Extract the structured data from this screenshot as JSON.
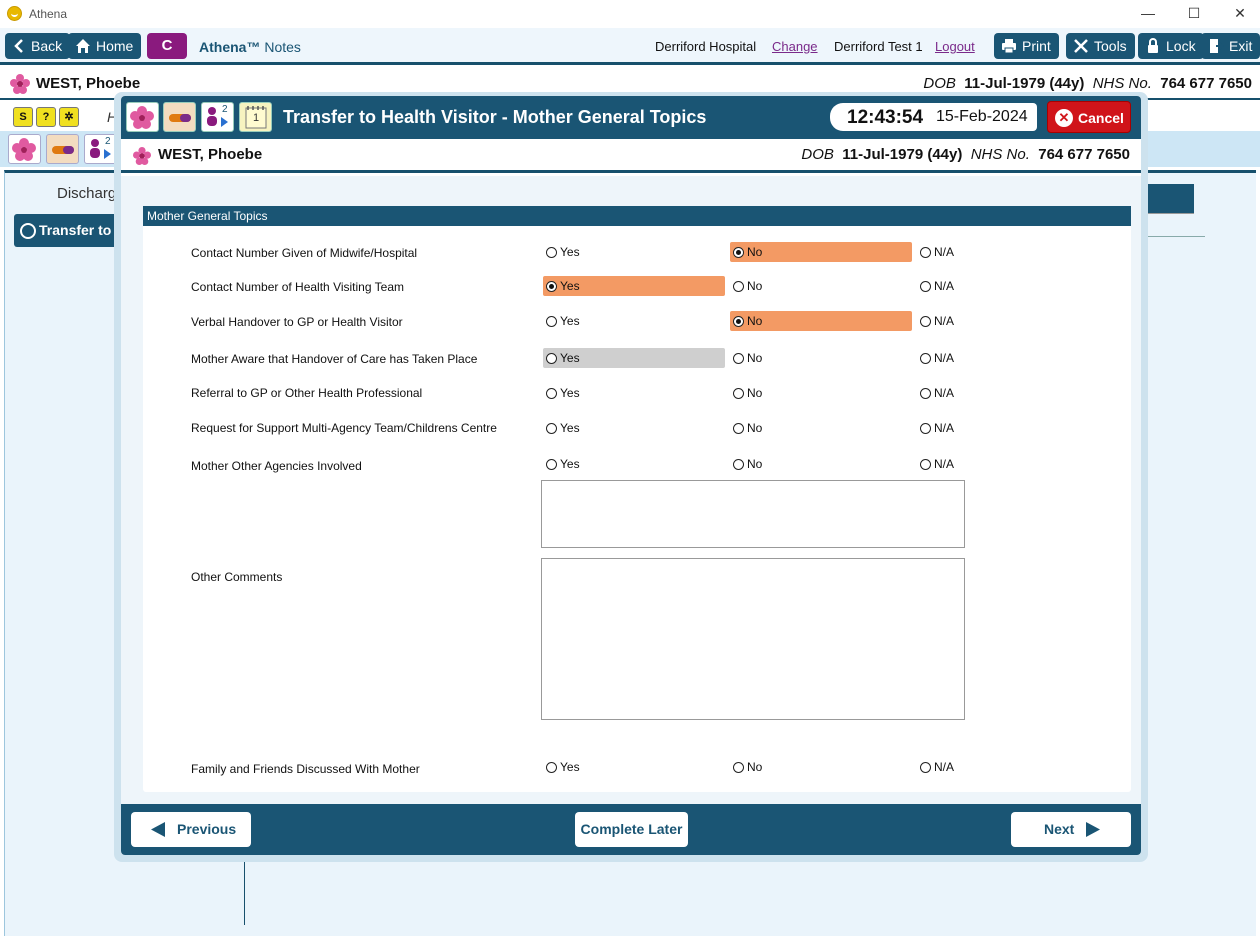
{
  "window": {
    "title": "Athena",
    "minimize": "—",
    "maximize": "☐",
    "close": "✕"
  },
  "toolbar": {
    "back": "Back",
    "home": "Home",
    "c_button": "C",
    "brand_bold": "Athena™",
    "brand_rest": " Notes",
    "hospital": "Derriford Hospital",
    "change": "Change",
    "user": "Derriford Test 1",
    "logout": "Logout",
    "print": "Print",
    "tools": "Tools",
    "lock": "Lock",
    "exit": "Exit"
  },
  "patient": {
    "name": "WEST, Phoebe",
    "dob_label": "DOB",
    "dob": "11-Jul-1979 (44y)",
    "nhs_label": "NHS No.",
    "nhs": "764 677 7650"
  },
  "background": {
    "row2_letter": "H",
    "discharge": "Discharg",
    "transfer": "Transfer to",
    "badge_count": "2"
  },
  "modal": {
    "title": "Transfer to Health Visitor - Mother General Topics",
    "time": "12:43:54",
    "date": "15-Feb-2024",
    "cancel": "Cancel",
    "icon_badge": "2",
    "note_number": "1",
    "section_title": "Mother General Topics",
    "option_labels": {
      "yes": "Yes",
      "no": "No",
      "na": "N/A"
    },
    "questions": [
      {
        "label": "Contact Number Given of Midwife/Hospital",
        "selected": "no"
      },
      {
        "label": "Contact Number of Health Visiting Team",
        "selected": "yes"
      },
      {
        "label": "Verbal Handover to GP or Health Visitor",
        "selected": "no"
      },
      {
        "label": "Mother Aware that Handover of Care has Taken Place",
        "selected": ""
      },
      {
        "label": "Referral to GP or Other Health Professional",
        "selected": ""
      },
      {
        "label": "Request for Support Multi-Agency Team/Childrens Centre",
        "selected": ""
      },
      {
        "label": "Mother Other Agencies Involved",
        "selected": ""
      }
    ],
    "other_agencies_text": "",
    "other_comments_label": "Other Comments",
    "other_comments_text": "",
    "family_question": {
      "label": "Family and Friends Discussed With Mother",
      "selected": ""
    },
    "previous": "Previous",
    "complete_later": "Complete Later",
    "next": "Next"
  },
  "colors": {
    "navy": "#1a5574",
    "selected": "#f39a64",
    "cancel": "#d0141a",
    "purple": "#8a1a7e"
  }
}
